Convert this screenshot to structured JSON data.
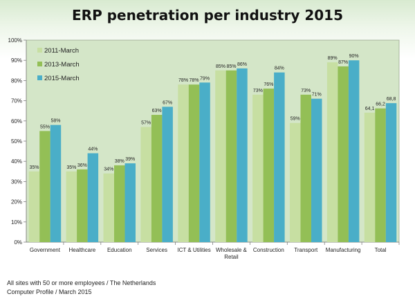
{
  "title": "ERP penetration per industry 2015",
  "footnotes": [
    "All sites with 50 or more employees  / The Netherlands",
    "Computer Profile / March 2015"
  ],
  "colors": {
    "plot_bg": "#d4e6c8",
    "series": [
      "#c7dfa2",
      "#93bf56",
      "#4aaec8"
    ]
  },
  "chart_data": {
    "type": "bar",
    "title": "ERP penetration per industry 2015",
    "categories": [
      [
        "Government"
      ],
      [
        "Healthcare"
      ],
      [
        "Education"
      ],
      [
        "Services"
      ],
      [
        "ICT & Utilities"
      ],
      [
        "Wholesale &",
        "Retail"
      ],
      [
        "Construction"
      ],
      [
        "Transport"
      ],
      [
        "Manufacturing"
      ],
      [
        "Total"
      ]
    ],
    "series": [
      {
        "name": "2011-March",
        "values": [
          35,
          35,
          34,
          57,
          78,
          85,
          73,
          59,
          89,
          64.1
        ],
        "labels": [
          "35%",
          "35%",
          "34%",
          "57%",
          "78%",
          "85%",
          "73%",
          "59%",
          "89%",
          "64,1"
        ]
      },
      {
        "name": "2013-March",
        "values": [
          55,
          36,
          38,
          63,
          78,
          85,
          76,
          73,
          87,
          66.2
        ],
        "labels": [
          "55%",
          "36%",
          "38%",
          "63%",
          "78%",
          "85%",
          "76%",
          "73%",
          "87%",
          "66,2"
        ]
      },
      {
        "name": "2015-March",
        "values": [
          58,
          44,
          39,
          67,
          79,
          86,
          84,
          71,
          90,
          68.8
        ],
        "labels": [
          "58%",
          "44%",
          "39%",
          "67%",
          "79%",
          "86%",
          "84%",
          "71%",
          "90%",
          "68,8"
        ]
      }
    ],
    "y_ticks": [
      "0%",
      "10%",
      "20%",
      "30%",
      "40%",
      "50%",
      "60%",
      "70%",
      "80%",
      "90%",
      "100%"
    ],
    "ylim": [
      0,
      100
    ],
    "legend_position": "top-left inside",
    "grid": false
  }
}
